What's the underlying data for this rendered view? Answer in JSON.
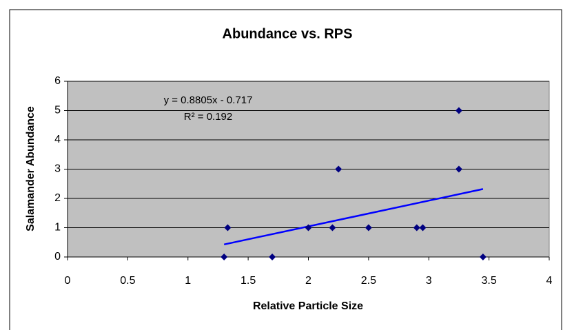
{
  "chart_data": {
    "type": "scatter",
    "title": "Abundance vs. RPS",
    "x_label": "Relative Particle Size",
    "y_label": "Salamander Abundance",
    "x": [
      1.3,
      1.33,
      1.7,
      2,
      2.2,
      2.25,
      2.5,
      2.9,
      2.95,
      3.25,
      3.25,
      3.45
    ],
    "values": [
      0,
      1,
      0,
      1,
      1,
      3,
      1,
      1,
      1,
      5,
      3,
      0
    ],
    "color": "#000080",
    "trendline_color": "#0000ff",
    "annotations": [
      "y = 0.8805x - 0.717",
      "R² = 0.192"
    ],
    "xlim": [
      0,
      4
    ],
    "xticks": [
      0,
      0.5,
      1,
      1.5,
      2,
      2.5,
      3,
      3.5,
      4
    ],
    "ylim": [
      0,
      6
    ],
    "yticks": [
      0,
      1,
      2,
      3,
      4,
      5,
      6
    ],
    "grid": true
  }
}
